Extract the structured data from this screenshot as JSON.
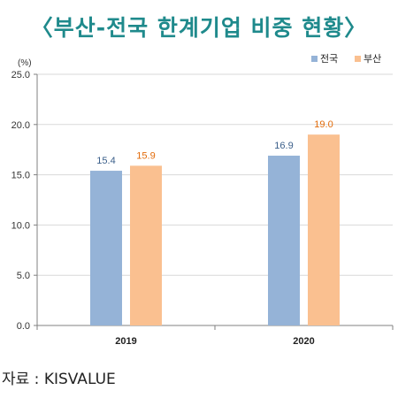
{
  "title": "〈부산-전국 한계기업 비중 현황〉",
  "source": "자료 : KISVALUE",
  "colors": {
    "title": "#1f8a8c",
    "전국": "#95b3d7",
    "부산": "#fac090",
    "label_전국": "#3b5f8a",
    "label_부산": "#e26b0a"
  },
  "chart_data": {
    "type": "bar",
    "unit_label": "(%)",
    "categories": [
      "2019",
      "2020"
    ],
    "series": [
      {
        "name": "전국",
        "values": [
          15.4,
          16.9
        ]
      },
      {
        "name": "부산",
        "values": [
          15.9,
          19.0
        ]
      }
    ],
    "ylim": [
      0,
      25
    ],
    "yticks": [
      "0.0",
      "5.0",
      "10.0",
      "15.0",
      "20.0",
      "25.0"
    ],
    "legend_position": "top-right",
    "grid": true
  }
}
